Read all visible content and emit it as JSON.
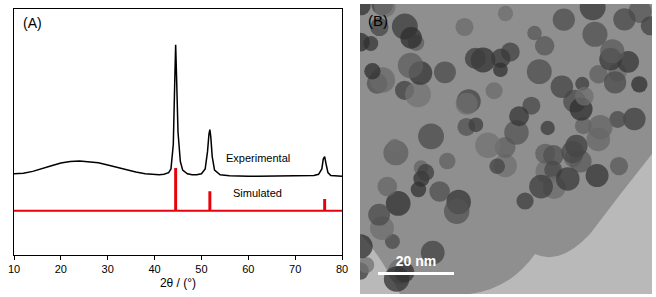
{
  "chart_data": {
    "type": "line",
    "annotations": [
      "(A)"
    ],
    "x_label": "2θ / (°)",
    "xlim": [
      10,
      80
    ],
    "xticks": [
      10,
      20,
      30,
      40,
      50,
      60,
      70,
      80
    ],
    "ylim": [
      0,
      100
    ],
    "tick_labels": "x",
    "grid": false,
    "series": [
      {
        "name": "Experimental",
        "color": "#000000",
        "x": [
          10,
          12,
          14,
          16,
          18,
          20,
          22,
          24,
          26,
          28,
          30,
          32,
          34,
          36,
          38,
          40,
          41,
          42,
          43,
          43.5,
          44,
          44.3,
          44.5,
          44.7,
          45,
          45.5,
          46,
          47,
          48,
          49,
          50,
          50.8,
          51.3,
          51.6,
          51.8,
          52,
          52.3,
          52.8,
          54,
          56,
          58,
          60,
          62,
          64,
          66,
          68,
          70,
          72,
          74,
          75,
          75.7,
          76,
          76.3,
          76.6,
          77,
          77.6,
          78,
          79,
          80
        ],
        "values": [
          33,
          33.2,
          34,
          35,
          36.3,
          37.4,
          38,
          38.2,
          38,
          37.5,
          36.6,
          35.6,
          34.6,
          33.7,
          33,
          32.6,
          32.6,
          32.8,
          33.5,
          35,
          45,
          70,
          85.5,
          72,
          50,
          38,
          34.5,
          33,
          32.6,
          32.6,
          33,
          35,
          42,
          49,
          51,
          48,
          40,
          34.5,
          32.6,
          32.2,
          32,
          32,
          32,
          32,
          32,
          32,
          32,
          32,
          32.3,
          32.8,
          35,
          39,
          40,
          37,
          33.5,
          32.3,
          32.2,
          32,
          32
        ]
      },
      {
        "name": "Simulated",
        "color": "#e8000b",
        "x": [
          10,
          44.4,
          44.4,
          44.6,
          44.6,
          51.7,
          51.7,
          51.9,
          51.9,
          76.2,
          76.2,
          76.4,
          76.4,
          80
        ],
        "values": [
          18,
          18,
          35,
          35,
          18,
          18,
          25.5,
          25.5,
          18,
          18,
          22.4,
          22.4,
          18,
          18
        ]
      }
    ]
  },
  "image_panel": {
    "label": "(B)",
    "scale_bar": "20 nm"
  }
}
